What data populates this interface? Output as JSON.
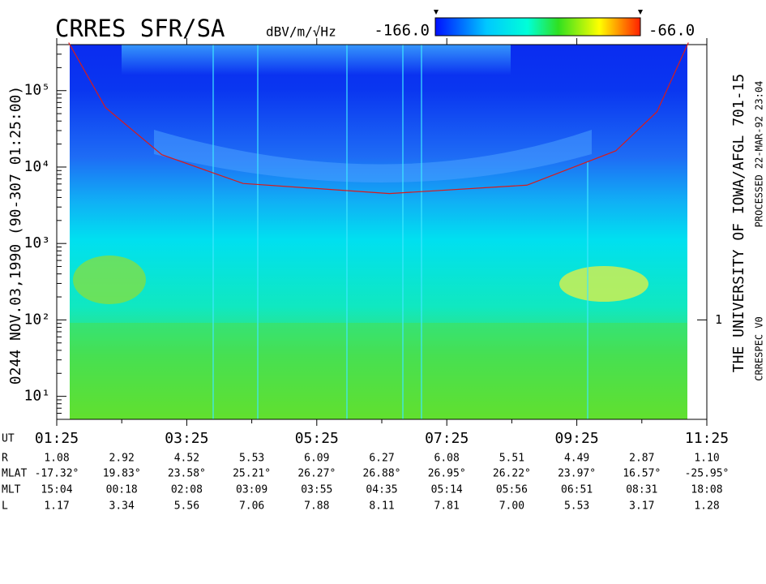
{
  "chart_data": {
    "type": "spectrogram",
    "title": "CRRES SFR/SA",
    "colorbar": {
      "label": "dBV/m/√Hz",
      "lim": [
        {
          "value": -166,
          "label": "-166.0"
        },
        {
          "value": -66,
          "label": "-66.0"
        }
      ]
    },
    "left_label": "0244  NOV.03,1990  (90-307 01:25:00)",
    "right_label": "THE UNIVERSITY OF IOWA/AFGL 701-15",
    "processed_label": "PROCESSED 22-MAR-92  23:04",
    "version_label": "CRRESPEC V0",
    "log_y": true,
    "ylim": [
      5,
      400000
    ],
    "yticks": [
      {
        "value": 10,
        "label": "10¹"
      },
      {
        "value": 100,
        "label": "10²"
      },
      {
        "value": 1000,
        "label": "10³"
      },
      {
        "value": 10000,
        "label": "10⁴"
      },
      {
        "value": 100000,
        "label": "10⁵"
      }
    ],
    "y2lim": [
      0.05,
      4000
    ],
    "y2ticks": [
      1
    ],
    "xlim": [
      85,
      685
    ],
    "xticks": [
      {
        "value": 85,
        "label": "01:25"
      },
      {
        "value": 205,
        "label": "03:25"
      },
      {
        "value": 325,
        "label": "05:25"
      },
      {
        "value": 445,
        "label": "07:25"
      },
      {
        "value": 565,
        "label": "09:25"
      },
      {
        "value": 685,
        "label": "11:25"
      }
    ],
    "series": [
      {
        "color": "#d81b1b",
        "x": [
          96,
          130,
          182,
          257,
          392,
          519,
          601,
          639,
          668
        ],
        "values": [
          425000,
          60000,
          14500,
          6100,
          4500,
          5800,
          16300,
          53000,
          425000
        ]
      }
    ],
    "ephemeris": {
      "labels": [
        "UT",
        "R",
        "MLAT",
        "MLT",
        "L"
      ],
      "rows": [
        [
          "1.08",
          "2.92",
          "4.52",
          "5.53",
          "6.09",
          "6.27",
          "6.08",
          "5.51",
          "4.49",
          "2.87",
          "1.10"
        ],
        [
          "-17.32°",
          "19.83°",
          "23.58°",
          "25.21°",
          "26.27°",
          "26.88°",
          "26.95°",
          "26.22°",
          "23.97°",
          "16.57°",
          "-25.95°"
        ],
        [
          "15:04",
          "00:18",
          "02:08",
          "03:09",
          "03:55",
          "04:35",
          "05:14",
          "05:56",
          "06:51",
          "08:31",
          "18:08"
        ],
        [
          "1.17",
          "3.34",
          "5.56",
          "7.06",
          "7.88",
          "8.11",
          "7.81",
          "7.00",
          "5.53",
          "3.17",
          "1.28"
        ]
      ]
    }
  }
}
